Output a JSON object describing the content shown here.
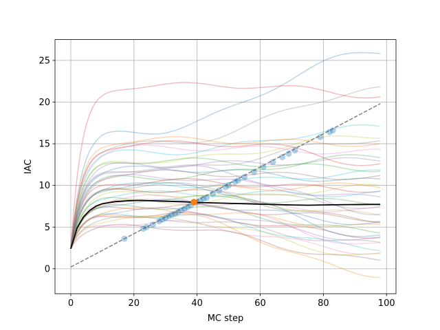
{
  "chart_data": {
    "type": "line",
    "title": "",
    "xlabel": "MC step",
    "ylabel": "IAC",
    "xlim": [
      -5,
      103
    ],
    "ylim": [
      -3,
      27.5
    ],
    "xticks": [
      0,
      20,
      40,
      60,
      80,
      100
    ],
    "yticks": [
      0,
      5,
      10,
      15,
      20,
      25
    ],
    "grid": true,
    "colors": {
      "mean_line": "#000000",
      "reference_line": "#808080",
      "points": "#1f77b4",
      "highlight_point": "#ff7f0e",
      "palette": [
        "#1f77b4",
        "#ff7f0e",
        "#2ca02c",
        "#d62728",
        "#9467bd",
        "#8c564b",
        "#e377c2",
        "#7f7f7f",
        "#bcbd22",
        "#17becf"
      ]
    },
    "reference_line": {
      "style": "dashed",
      "x": [
        0,
        98
      ],
      "y": [
        0.2,
        19.8
      ]
    },
    "mean_line": {
      "x": [
        0,
        2,
        4,
        6,
        8,
        10,
        14,
        18,
        22,
        26,
        30,
        35,
        40,
        45,
        50,
        55,
        60,
        65,
        70,
        75,
        80,
        85,
        90,
        95,
        98
      ],
      "y": [
        2.4,
        4.9,
        6.2,
        7.0,
        7.5,
        7.8,
        8.05,
        8.15,
        8.2,
        8.15,
        8.1,
        8.05,
        7.95,
        7.9,
        7.85,
        7.8,
        7.75,
        7.7,
        7.65,
        7.62,
        7.65,
        7.68,
        7.7,
        7.72,
        7.72
      ]
    },
    "highlight_point": {
      "x": 39,
      "y": 8.0
    },
    "points": [
      {
        "x": 17,
        "y": 3.6
      },
      {
        "x": 23,
        "y": 4.8
      },
      {
        "x": 24,
        "y": 5.0
      },
      {
        "x": 26,
        "y": 5.3
      },
      {
        "x": 28,
        "y": 5.7
      },
      {
        "x": 29,
        "y": 5.9
      },
      {
        "x": 30,
        "y": 6.1
      },
      {
        "x": 31,
        "y": 6.3
      },
      {
        "x": 32,
        "y": 6.5
      },
      {
        "x": 33,
        "y": 6.6
      },
      {
        "x": 34,
        "y": 6.8
      },
      {
        "x": 35,
        "y": 7.0
      },
      {
        "x": 36,
        "y": 7.2
      },
      {
        "x": 37,
        "y": 7.4
      },
      {
        "x": 38,
        "y": 7.6
      },
      {
        "x": 40,
        "y": 8.0
      },
      {
        "x": 41,
        "y": 8.2
      },
      {
        "x": 42,
        "y": 8.4
      },
      {
        "x": 43,
        "y": 8.5
      },
      {
        "x": 45,
        "y": 9.0
      },
      {
        "x": 47,
        "y": 9.4
      },
      {
        "x": 49,
        "y": 9.8
      },
      {
        "x": 50,
        "y": 10.0
      },
      {
        "x": 52,
        "y": 10.4
      },
      {
        "x": 53,
        "y": 10.6
      },
      {
        "x": 55,
        "y": 11.0
      },
      {
        "x": 58,
        "y": 11.6
      },
      {
        "x": 61,
        "y": 12.2
      },
      {
        "x": 64,
        "y": 12.8
      },
      {
        "x": 67,
        "y": 13.4
      },
      {
        "x": 69,
        "y": 13.8
      },
      {
        "x": 71,
        "y": 14.2
      },
      {
        "x": 79,
        "y": 15.8
      },
      {
        "x": 82,
        "y": 16.4
      },
      {
        "x": 83,
        "y": 16.6
      }
    ],
    "series": [
      {
        "end": 26.1,
        "peak": 16.5,
        "tpeak": 25,
        "color": "#1f77b4"
      },
      {
        "end": 20.8,
        "peak": 22.0,
        "tpeak": 55,
        "color": "#d62728"
      },
      {
        "end": 21.5,
        "peak": 15.0,
        "tpeak": 30,
        "color": "#7f7f7f"
      },
      {
        "end": 17.0,
        "peak": 14.0,
        "tpeak": 30,
        "color": "#17becf"
      },
      {
        "end": 16.0,
        "peak": 13.0,
        "tpeak": 30,
        "color": "#bcbd22"
      },
      {
        "end": 15.0,
        "peak": 15.5,
        "tpeak": 30,
        "color": "#ff7f0e"
      },
      {
        "end": 14.0,
        "peak": 14.5,
        "tpeak": 40,
        "color": "#e377c2"
      },
      {
        "end": 13.0,
        "peak": 12.5,
        "tpeak": 30,
        "color": "#9467bd"
      },
      {
        "end": 12.0,
        "peak": 13.0,
        "tpeak": 30,
        "color": "#2ca02c"
      },
      {
        "end": 11.0,
        "peak": 11.5,
        "tpeak": 30,
        "color": "#8c564b"
      },
      {
        "end": 10.5,
        "peak": 12.0,
        "tpeak": 30,
        "color": "#1f77b4"
      },
      {
        "end": 10.0,
        "peak": 9.5,
        "tpeak": 30,
        "color": "#ff7f0e"
      },
      {
        "end": 9.5,
        "peak": 10.5,
        "tpeak": 30,
        "color": "#d62728"
      },
      {
        "end": 9.0,
        "peak": 9.0,
        "tpeak": 30,
        "color": "#17becf"
      },
      {
        "end": 8.5,
        "peak": 11.0,
        "tpeak": 30,
        "color": "#9467bd"
      },
      {
        "end": 8.0,
        "peak": 8.5,
        "tpeak": 30,
        "color": "#2ca02c"
      },
      {
        "end": 7.5,
        "peak": 10.0,
        "tpeak": 30,
        "color": "#7f7f7f"
      },
      {
        "end": 7.0,
        "peak": 8.0,
        "tpeak": 30,
        "color": "#e377c2"
      },
      {
        "end": 6.5,
        "peak": 9.0,
        "tpeak": 30,
        "color": "#bcbd22"
      },
      {
        "end": 6.0,
        "peak": 7.5,
        "tpeak": 30,
        "color": "#8c564b"
      },
      {
        "end": 5.5,
        "peak": 8.0,
        "tpeak": 30,
        "color": "#1f77b4"
      },
      {
        "end": 5.0,
        "peak": 7.0,
        "tpeak": 30,
        "color": "#ff7f0e"
      },
      {
        "end": 4.5,
        "peak": 7.5,
        "tpeak": 30,
        "color": "#2ca02c"
      },
      {
        "end": 4.0,
        "peak": 6.5,
        "tpeak": 30,
        "color": "#d62728"
      },
      {
        "end": 3.5,
        "peak": 7.0,
        "tpeak": 30,
        "color": "#9467bd"
      },
      {
        "end": 3.0,
        "peak": 6.0,
        "tpeak": 30,
        "color": "#7f7f7f"
      },
      {
        "end": 2.5,
        "peak": 6.5,
        "tpeak": 30,
        "color": "#17becf"
      },
      {
        "end": 2.0,
        "peak": 5.5,
        "tpeak": 30,
        "color": "#e377c2"
      },
      {
        "end": 1.5,
        "peak": 6.0,
        "tpeak": 30,
        "color": "#bcbd22"
      },
      {
        "end": 1.0,
        "peak": 5.0,
        "tpeak": 30,
        "color": "#8c564b"
      },
      {
        "end": -0.7,
        "peak": 6.5,
        "tpeak": 30,
        "color": "#ff7f0e"
      },
      {
        "end": 12.5,
        "peak": 15.0,
        "tpeak": 55,
        "color": "#d62728"
      },
      {
        "end": 11.5,
        "peak": 10.0,
        "tpeak": 30,
        "color": "#17becf"
      },
      {
        "end": 13.5,
        "peak": 11.0,
        "tpeak": 30,
        "color": "#2ca02c"
      },
      {
        "end": 6.8,
        "peak": 12.0,
        "tpeak": 40,
        "color": "#9467bd"
      },
      {
        "end": 3.8,
        "peak": 10.0,
        "tpeak": 35,
        "color": "#1f77b4"
      },
      {
        "end": 9.8,
        "peak": 8.0,
        "tpeak": 30,
        "color": "#bcbd22"
      },
      {
        "end": 5.8,
        "peak": 9.5,
        "tpeak": 30,
        "color": "#8c564b"
      },
      {
        "end": 15.5,
        "peak": 12.0,
        "tpeak": 30,
        "color": "#7f7f7f"
      },
      {
        "end": 2.8,
        "peak": 8.5,
        "tpeak": 30,
        "color": "#e377c2"
      }
    ]
  }
}
